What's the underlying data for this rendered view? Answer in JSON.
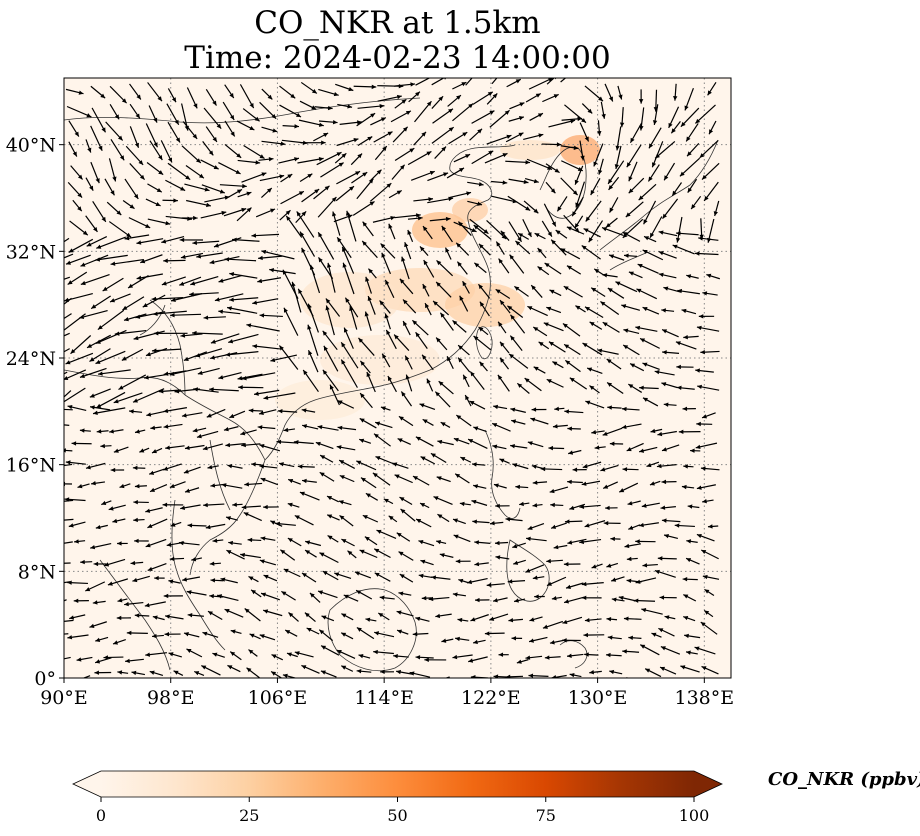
{
  "title": {
    "line1": "CO_NKR at 1.5km",
    "line2": "Time: 2024-02-23 14:00:00"
  },
  "map": {
    "extent": {
      "lon": [
        90,
        140
      ],
      "lat": [
        0,
        45
      ]
    },
    "lon_ticks": [
      {
        "value": 90,
        "label": "90°E"
      },
      {
        "value": 98,
        "label": "98°E"
      },
      {
        "value": 106,
        "label": "106°E"
      },
      {
        "value": 114,
        "label": "114°E"
      },
      {
        "value": 122,
        "label": "122°E"
      },
      {
        "value": 130,
        "label": "130°E"
      },
      {
        "value": 138,
        "label": "138°E"
      }
    ],
    "lat_ticks": [
      {
        "value": 0,
        "label": "0°"
      },
      {
        "value": 8,
        "label": "8°N"
      },
      {
        "value": 16,
        "label": "16°N"
      },
      {
        "value": 24,
        "label": "24°N"
      },
      {
        "value": 32,
        "label": "32°N"
      },
      {
        "value": 40,
        "label": "40°N"
      }
    ],
    "gridlines": "dotted",
    "background_color": "#fff5eb",
    "coastline_color": "#333333",
    "vector_color": "#000000"
  },
  "colorbar": {
    "label": "CO_NKR (ppbv)",
    "range": [
      0,
      100
    ],
    "extend": "both",
    "ticks": [
      {
        "value": 0,
        "label": "0"
      },
      {
        "value": 25,
        "label": "25"
      },
      {
        "value": 50,
        "label": "50"
      },
      {
        "value": 75,
        "label": "75"
      },
      {
        "value": 100,
        "label": "100"
      }
    ],
    "colormap": [
      "#fff5eb",
      "#fee6ce",
      "#fdd0a2",
      "#fdae6b",
      "#fd8d3c",
      "#f16913",
      "#d94801",
      "#a63603",
      "#7f2704"
    ]
  }
}
